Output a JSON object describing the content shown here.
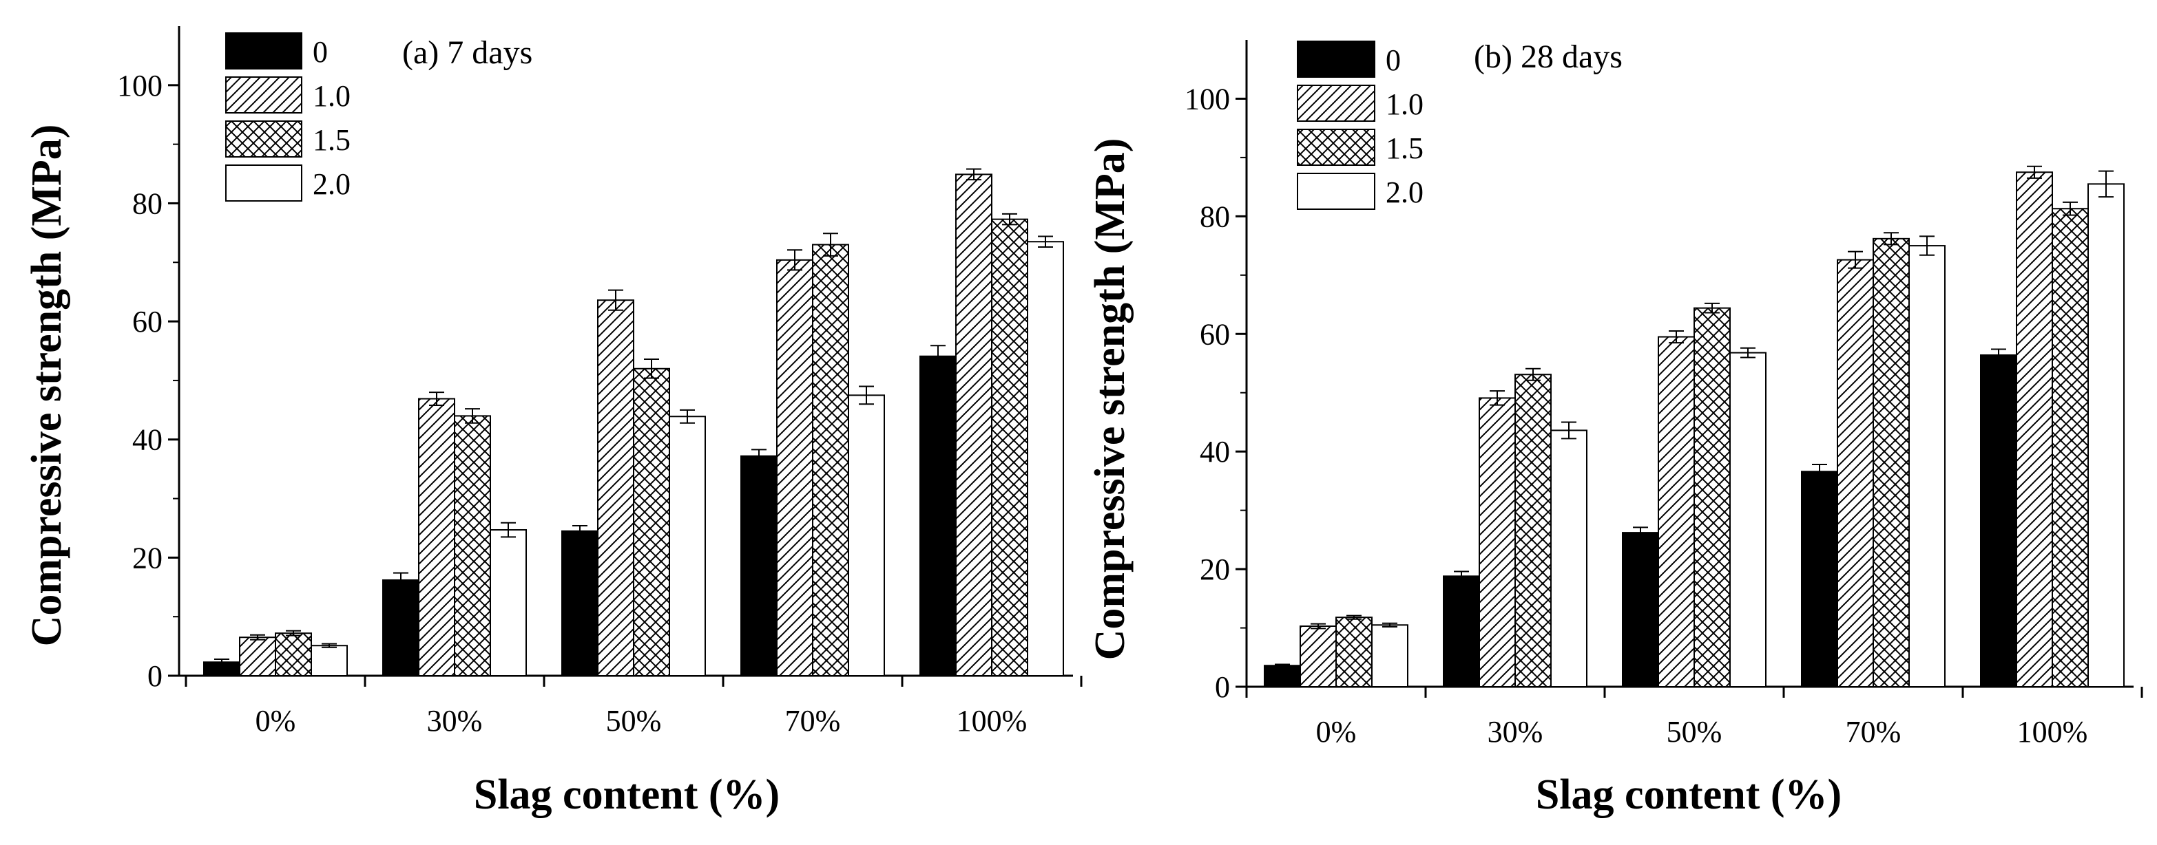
{
  "figure": {
    "colors": {
      "axis": "#000000",
      "solid": "#000000",
      "background": "#ffffff"
    }
  },
  "chart_data": [
    {
      "type": "bar",
      "title": "(a) 7 days",
      "xlabel": "Slag content (%)",
      "ylabel": "Compressive strength (MPa)",
      "ylim": [
        0,
        110
      ],
      "yticks": [
        "0",
        "20",
        "40",
        "60",
        "80",
        "100"
      ],
      "categories": [
        "0%",
        "30%",
        "50%",
        "70%",
        "100%"
      ],
      "series": [
        {
          "name": "0",
          "pattern": "solid",
          "values": [
            2.3,
            16.2,
            24.5,
            37.2,
            54.1
          ],
          "errors": [
            0.5,
            1.2,
            0.9,
            1.1,
            1.8
          ]
        },
        {
          "name": "1.0",
          "pattern": "diagonal",
          "values": [
            6.5,
            46.9,
            63.6,
            70.4,
            84.9
          ],
          "errors": [
            0.4,
            1.1,
            1.7,
            1.7,
            0.9
          ]
        },
        {
          "name": "1.5",
          "pattern": "crosshatch",
          "values": [
            7.2,
            44.0,
            52.0,
            73.0,
            77.3
          ],
          "errors": [
            0.4,
            1.2,
            1.6,
            1.9,
            0.9
          ]
        },
        {
          "name": "2.0",
          "pattern": "none",
          "values": [
            5.1,
            24.7,
            43.9,
            47.5,
            73.5
          ],
          "errors": [
            0.3,
            1.2,
            1.1,
            1.5,
            0.9
          ]
        }
      ]
    },
    {
      "type": "bar",
      "title": "(b) 28 days",
      "xlabel": "Slag content (%)",
      "ylabel": "Compressive strength (MPa)",
      "ylim": [
        0,
        110
      ],
      "yticks": [
        "0",
        "20",
        "40",
        "60",
        "80",
        "100"
      ],
      "categories": [
        "0%",
        "30%",
        "50%",
        "70%",
        "100%"
      ],
      "series": [
        {
          "name": "0",
          "pattern": "solid",
          "values": [
            3.6,
            18.8,
            26.2,
            36.6,
            56.4
          ],
          "errors": [
            0.2,
            0.8,
            0.9,
            1.2,
            1.0
          ]
        },
        {
          "name": "1.0",
          "pattern": "diagonal",
          "values": [
            10.3,
            49.1,
            59.5,
            72.6,
            87.5
          ],
          "errors": [
            0.4,
            1.2,
            1.0,
            1.4,
            1.0
          ]
        },
        {
          "name": "1.5",
          "pattern": "crosshatch",
          "values": [
            11.8,
            53.1,
            64.4,
            76.2,
            81.3
          ],
          "errors": [
            0.3,
            1.0,
            0.8,
            1.0,
            1.1
          ]
        },
        {
          "name": "2.0",
          "pattern": "none",
          "values": [
            10.5,
            43.6,
            56.8,
            75.0,
            85.5
          ],
          "errors": [
            0.3,
            1.4,
            0.8,
            1.6,
            2.2
          ]
        }
      ]
    }
  ]
}
